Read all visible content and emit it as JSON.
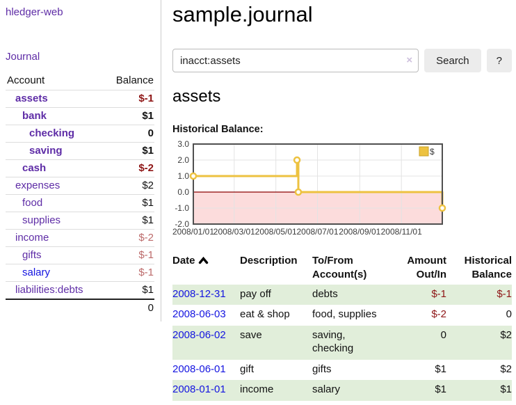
{
  "app": {
    "brand": "hledger-web",
    "nav_journal": "Journal"
  },
  "sidebar": {
    "header": {
      "account": "Account",
      "balance": "Balance"
    },
    "accounts": [
      {
        "name": "assets",
        "indent": 1,
        "emphasis": true,
        "link": "visited",
        "balance": "$-1",
        "balance_tone": "negative"
      },
      {
        "name": "bank",
        "indent": 2,
        "emphasis": true,
        "link": "visited",
        "balance": "$1",
        "balance_tone": "normal"
      },
      {
        "name": "checking",
        "indent": 3,
        "emphasis": true,
        "link": "visited",
        "balance": "0",
        "balance_tone": "normal"
      },
      {
        "name": "saving",
        "indent": 3,
        "emphasis": true,
        "link": "visited",
        "balance": "$1",
        "balance_tone": "normal"
      },
      {
        "name": "cash",
        "indent": 2,
        "emphasis": true,
        "link": "visited",
        "balance": "$-2",
        "balance_tone": "negative"
      },
      {
        "name": "expenses",
        "indent": 1,
        "emphasis": false,
        "link": "visited",
        "balance": "$2",
        "balance_tone": "normal"
      },
      {
        "name": "food",
        "indent": 2,
        "emphasis": false,
        "link": "visited",
        "balance": "$1",
        "balance_tone": "normal"
      },
      {
        "name": "supplies",
        "indent": 2,
        "emphasis": false,
        "link": "visited",
        "balance": "$1",
        "balance_tone": "normal"
      },
      {
        "name": "income",
        "indent": 1,
        "emphasis": false,
        "link": "visited",
        "balance": "$-2",
        "balance_tone": "negative-muted"
      },
      {
        "name": "gifts",
        "indent": 2,
        "emphasis": false,
        "link": "visited",
        "balance": "$-1",
        "balance_tone": "negative-muted"
      },
      {
        "name": "salary",
        "indent": 2,
        "emphasis": false,
        "link": "unvisited",
        "balance": "$-1",
        "balance_tone": "negative-muted"
      },
      {
        "name": "liabilities:debts",
        "indent": 1,
        "emphasis": false,
        "link": "visited",
        "balance": "$1",
        "balance_tone": "normal"
      }
    ],
    "total": "0"
  },
  "main": {
    "title": "sample.journal",
    "search": {
      "value": "inacct:assets",
      "clear_icon": "×",
      "button_label": "Search",
      "help_label": "?"
    },
    "account_heading": "assets"
  },
  "chart_data": {
    "type": "line",
    "step": true,
    "title": "Historical Balance:",
    "series": [
      {
        "name": "$",
        "color": "#edc240",
        "points": [
          [
            "2008-01-01",
            1
          ],
          [
            "2008-06-01",
            2
          ],
          [
            "2008-06-03",
            0
          ],
          [
            "2008-12-31",
            -1
          ]
        ]
      }
    ],
    "xlim": [
      "2008/01/01",
      "2008/12/31"
    ],
    "ylim": [
      -2,
      3
    ],
    "yticks": [
      "3.0",
      "2.0",
      "1.0",
      "0.0",
      "-1.0",
      "-2.0"
    ],
    "xticks": [
      "2008/01/01",
      "2008/03/01",
      "2008/05/01",
      "2008/07/01",
      "2008/09/01",
      "2008/11/01"
    ],
    "grid": true,
    "legend_position": "top-right",
    "colors": {
      "negative_region": "#fcdcdc",
      "zero_line": "#8b0000",
      "border": "#4f4f4f",
      "gridline": "#e3e3e3"
    }
  },
  "register": {
    "columns": [
      "Date",
      "Description",
      "To/From Account(s)",
      "Amount Out/In",
      "Historical Balance"
    ],
    "sort_icon": "chevron-up",
    "rows": [
      {
        "date": "2008-12-31",
        "description": "pay off",
        "accounts": "debts",
        "amount": "$-1",
        "amount_negative": true,
        "balance": "$-1",
        "balance_negative": true
      },
      {
        "date": "2008-06-03",
        "description": "eat & shop",
        "accounts": "food, supplies",
        "amount": "$-2",
        "amount_negative": true,
        "balance": "0",
        "balance_negative": false
      },
      {
        "date": "2008-06-02",
        "description": "save",
        "accounts": "saving, checking",
        "amount": "0",
        "amount_negative": false,
        "balance": "$2",
        "balance_negative": false
      },
      {
        "date": "2008-06-01",
        "description": "gift",
        "accounts": "gifts",
        "amount": "$1",
        "amount_negative": false,
        "balance": "$2",
        "balance_negative": false
      },
      {
        "date": "2008-01-01",
        "description": "income",
        "accounts": "salary",
        "amount": "$1",
        "amount_negative": false,
        "balance": "$1",
        "balance_negative": false
      }
    ]
  },
  "colors": {
    "accent_purple": "#5e2ca6",
    "link_blue": "#1414e0",
    "negative_red": "#8e1515",
    "negative_muted_red": "#bc6a6a",
    "row_stripe_green": "#e1eeda",
    "series_gold": "#edc240"
  }
}
